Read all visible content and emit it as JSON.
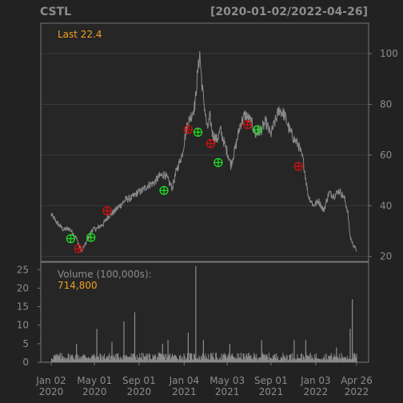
{
  "chart_data": {
    "type": "line",
    "title": "CSTL",
    "date_range_label": "[2020-01-02/2022-04-26]",
    "last_label": "Last 22.4",
    "colors": {
      "background": "#222222",
      "panel_border": "#777777",
      "grid": "#3a3a3a",
      "price_line": "#8a8a8a",
      "volume_bars": "#8c8c8c",
      "title_text": "#8c8c8c",
      "axis_text": "#8c8c8c",
      "accent": "#f0a020",
      "buy_marker": "#22dd22",
      "sell_marker": "#cc1111"
    },
    "price_panel": {
      "ylim": [
        18,
        112
      ],
      "yticks": [
        20,
        40,
        60,
        80,
        100
      ],
      "series": [
        {
          "x": [
            "2020-01-02",
            "2020-01-20",
            "2020-02-05",
            "2020-02-21",
            "2020-03-09",
            "2020-03-18",
            "2020-03-26",
            "2020-04-10",
            "2020-04-24",
            "2020-05-08",
            "2020-05-26",
            "2020-06-09",
            "2020-06-23",
            "2020-07-10",
            "2020-07-27",
            "2020-08-11",
            "2020-08-26",
            "2020-09-10",
            "2020-09-25",
            "2020-10-12",
            "2020-10-27",
            "2020-11-11",
            "2020-11-20",
            "2020-12-02",
            "2020-12-14",
            "2020-12-29",
            "2021-01-12",
            "2021-01-25",
            "2021-02-03",
            "2021-02-10",
            "2021-02-16",
            "2021-02-22",
            "2021-03-02",
            "2021-03-09",
            "2021-03-16",
            "2021-03-24",
            "2021-04-05",
            "2021-04-14",
            "2021-04-26",
            "2021-05-06",
            "2021-05-13",
            "2021-05-26",
            "2021-06-08",
            "2021-06-22",
            "2021-07-08",
            "2021-07-21",
            "2021-08-05",
            "2021-08-18",
            "2021-08-31",
            "2021-09-10",
            "2021-09-24",
            "2021-10-08",
            "2021-10-22",
            "2021-11-05",
            "2021-11-16",
            "2021-11-29",
            "2021-12-13",
            "2021-12-28",
            "2022-01-11",
            "2022-01-25",
            "2022-02-08",
            "2022-02-23",
            "2022-03-09",
            "2022-03-23",
            "2022-04-01",
            "2022-04-08",
            "2022-04-15",
            "2022-04-26"
          ],
          "y": [
            36.5,
            33,
            30.5,
            31,
            28,
            25,
            22,
            26,
            30.5,
            31,
            33,
            36,
            37.5,
            40,
            42.5,
            43,
            45,
            46,
            48,
            49,
            51.5,
            52.5,
            50,
            47,
            54,
            60,
            72,
            76,
            80,
            92,
            100,
            88,
            78,
            70,
            75,
            68,
            66,
            70,
            64,
            60,
            56,
            63,
            72,
            76,
            73,
            68,
            70,
            73,
            68,
            72,
            78,
            76,
            70,
            66,
            64,
            58,
            44,
            40,
            42,
            38,
            45,
            44,
            46,
            43,
            38,
            28,
            25,
            22.4
          ]
        }
      ],
      "trade_markers": [
        {
          "type": "buy",
          "x": "2020-02-25",
          "y": 27
        },
        {
          "type": "sell",
          "x": "2020-03-18",
          "y": 23
        },
        {
          "type": "buy",
          "x": "2020-04-21",
          "y": 27.5
        },
        {
          "type": "sell",
          "x": "2020-06-05",
          "y": 38
        },
        {
          "type": "buy",
          "x": "2020-11-09",
          "y": 46
        },
        {
          "type": "sell",
          "x": "2021-01-15",
          "y": 70
        },
        {
          "type": "buy",
          "x": "2021-02-11",
          "y": 69
        },
        {
          "type": "sell",
          "x": "2021-03-18",
          "y": 64.5
        },
        {
          "type": "buy",
          "x": "2021-04-08",
          "y": 57
        },
        {
          "type": "sell",
          "x": "2021-06-28",
          "y": 72
        },
        {
          "type": "buy",
          "x": "2021-07-26",
          "y": 70
        },
        {
          "type": "sell",
          "x": "2021-11-16",
          "y": 55.5
        }
      ]
    },
    "volume_panel": {
      "label": "Volume (100,000s):",
      "last_value": "714,800",
      "ylim": [
        0,
        27
      ],
      "yticks": [
        0,
        5,
        10,
        15,
        20,
        25
      ],
      "baseline": 1.3,
      "spikes": [
        {
          "x": "2020-03-12",
          "y": 5
        },
        {
          "x": "2020-05-07",
          "y": 9
        },
        {
          "x": "2020-06-18",
          "y": 5.5
        },
        {
          "x": "2020-07-21",
          "y": 11
        },
        {
          "x": "2020-08-20",
          "y": 13.5
        },
        {
          "x": "2020-11-05",
          "y": 5
        },
        {
          "x": "2020-11-20",
          "y": 6
        },
        {
          "x": "2021-01-15",
          "y": 8
        },
        {
          "x": "2021-02-05",
          "y": 26
        },
        {
          "x": "2021-02-26",
          "y": 6
        },
        {
          "x": "2021-05-10",
          "y": 5
        },
        {
          "x": "2021-08-06",
          "y": 6
        },
        {
          "x": "2021-11-04",
          "y": 6
        },
        {
          "x": "2021-12-06",
          "y": 6
        },
        {
          "x": "2022-03-01",
          "y": 4
        },
        {
          "x": "2022-04-08",
          "y": 9
        },
        {
          "x": "2022-04-14",
          "y": 17
        }
      ]
    },
    "x_axis": {
      "xlim": [
        "2020-01-02",
        "2022-04-26"
      ],
      "ticks": [
        {
          "x": "2020-01-02",
          "line1": "Jan 02",
          "line2": "2020"
        },
        {
          "x": "2020-05-01",
          "line1": "May 01",
          "line2": "2020"
        },
        {
          "x": "2020-09-01",
          "line1": "Sep 01",
          "line2": "2020"
        },
        {
          "x": "2021-01-04",
          "line1": "Jan 04",
          "line2": "2021"
        },
        {
          "x": "2021-05-03",
          "line1": "May 03",
          "line2": "2021"
        },
        {
          "x": "2021-09-01",
          "line1": "Sep 01",
          "line2": "2021"
        },
        {
          "x": "2022-01-03",
          "line1": "Jan 03",
          "line2": "2022"
        },
        {
          "x": "2022-04-26",
          "line1": "Apr 26",
          "line2": "2022"
        }
      ]
    }
  }
}
